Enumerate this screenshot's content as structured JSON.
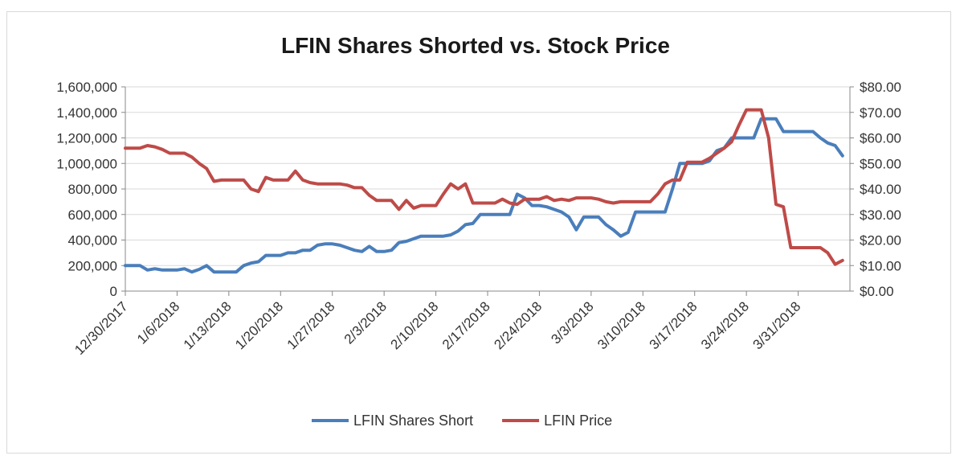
{
  "chart_data": {
    "type": "line",
    "title": "LFIN Shares Shorted vs. Stock Price",
    "x_tick_labels": [
      "12/30/2017",
      "1/6/2018",
      "1/13/2018",
      "1/20/2018",
      "1/27/2018",
      "2/3/2018",
      "2/10/2018",
      "2/17/2018",
      "2/24/2018",
      "3/3/2018",
      "3/10/2018",
      "3/17/2018",
      "3/24/2018",
      "3/31/2018"
    ],
    "x_range_days": [
      0,
      98
    ],
    "y_left": {
      "ylim": [
        0,
        1600000
      ],
      "tick_labels": [
        "0",
        "200,000",
        "400,000",
        "600,000",
        "800,000",
        "1,000,000",
        "1,200,000",
        "1,400,000",
        "1,600,000"
      ],
      "tick_values": [
        0,
        200000,
        400000,
        600000,
        800000,
        1000000,
        1200000,
        1400000,
        1600000
      ]
    },
    "y_right": {
      "ylim": [
        0,
        80
      ],
      "tick_labels": [
        "$0.00",
        "$10.00",
        "$20.00",
        "$30.00",
        "$40.00",
        "$50.00",
        "$60.00",
        "$70.00",
        "$80.00"
      ],
      "tick_values": [
        0,
        10,
        20,
        30,
        40,
        50,
        60,
        70,
        80
      ]
    },
    "series": [
      {
        "name": "LFIN Shares Short",
        "color": "#4a7ebb",
        "axis": "left",
        "points": [
          [
            0,
            200000
          ],
          [
            2,
            200000
          ],
          [
            3,
            165000
          ],
          [
            4,
            175000
          ],
          [
            5,
            165000
          ],
          [
            6,
            165000
          ],
          [
            7,
            165000
          ],
          [
            8,
            175000
          ],
          [
            9,
            150000
          ],
          [
            10,
            170000
          ],
          [
            11,
            200000
          ],
          [
            12,
            150000
          ],
          [
            13,
            150000
          ],
          [
            14,
            150000
          ],
          [
            15,
            150000
          ],
          [
            16,
            200000
          ],
          [
            17,
            220000
          ],
          [
            18,
            230000
          ],
          [
            19,
            280000
          ],
          [
            20,
            280000
          ],
          [
            21,
            280000
          ],
          [
            22,
            300000
          ],
          [
            23,
            300000
          ],
          [
            24,
            320000
          ],
          [
            25,
            320000
          ],
          [
            26,
            360000
          ],
          [
            27,
            370000
          ],
          [
            28,
            370000
          ],
          [
            29,
            360000
          ],
          [
            30,
            340000
          ],
          [
            31,
            320000
          ],
          [
            32,
            310000
          ],
          [
            33,
            350000
          ],
          [
            34,
            310000
          ],
          [
            35,
            310000
          ],
          [
            36,
            320000
          ],
          [
            37,
            380000
          ],
          [
            38,
            390000
          ],
          [
            39,
            410000
          ],
          [
            40,
            430000
          ],
          [
            41,
            430000
          ],
          [
            42,
            430000
          ],
          [
            43,
            430000
          ],
          [
            44,
            440000
          ],
          [
            45,
            470000
          ],
          [
            46,
            520000
          ],
          [
            47,
            530000
          ],
          [
            48,
            600000
          ],
          [
            49,
            600000
          ],
          [
            50,
            600000
          ],
          [
            51,
            600000
          ],
          [
            52,
            600000
          ],
          [
            53,
            760000
          ],
          [
            54,
            730000
          ],
          [
            55,
            670000
          ],
          [
            56,
            670000
          ],
          [
            57,
            660000
          ],
          [
            58,
            640000
          ],
          [
            59,
            620000
          ],
          [
            60,
            580000
          ],
          [
            61,
            480000
          ],
          [
            62,
            580000
          ],
          [
            63,
            580000
          ],
          [
            64,
            580000
          ],
          [
            65,
            520000
          ],
          [
            66,
            480000
          ],
          [
            67,
            430000
          ],
          [
            68,
            460000
          ],
          [
            69,
            620000
          ],
          [
            70,
            620000
          ],
          [
            71,
            620000
          ],
          [
            72,
            620000
          ],
          [
            73,
            620000
          ],
          [
            74,
            800000
          ],
          [
            75,
            1000000
          ],
          [
            76,
            1000000
          ],
          [
            77,
            1000000
          ],
          [
            78,
            1000000
          ],
          [
            79,
            1020000
          ],
          [
            80,
            1100000
          ],
          [
            81,
            1120000
          ],
          [
            82,
            1200000
          ],
          [
            83,
            1200000
          ],
          [
            84,
            1200000
          ],
          [
            85,
            1200000
          ],
          [
            86,
            1350000
          ],
          [
            87,
            1350000
          ],
          [
            88,
            1350000
          ],
          [
            89,
            1250000
          ],
          [
            90,
            1250000
          ],
          [
            91,
            1250000
          ],
          [
            92,
            1250000
          ],
          [
            93,
            1250000
          ],
          [
            94,
            1200000
          ],
          [
            95,
            1160000
          ],
          [
            96,
            1140000
          ],
          [
            97,
            1060000
          ]
        ]
      },
      {
        "name": "LFIN Price",
        "color": "#be4b48",
        "axis": "right",
        "points": [
          [
            0,
            56
          ],
          [
            1,
            56
          ],
          [
            2,
            56
          ],
          [
            3,
            57
          ],
          [
            4,
            56.5
          ],
          [
            5,
            55.5
          ],
          [
            6,
            54
          ],
          [
            7,
            54
          ],
          [
            8,
            54
          ],
          [
            9,
            52.5
          ],
          [
            10,
            50
          ],
          [
            11,
            48
          ],
          [
            12,
            43
          ],
          [
            13,
            43.5
          ],
          [
            14,
            43.5
          ],
          [
            15,
            43.5
          ],
          [
            16,
            43.5
          ],
          [
            17,
            40
          ],
          [
            18,
            39
          ],
          [
            19,
            44.5
          ],
          [
            20,
            43.5
          ],
          [
            21,
            43.5
          ],
          [
            22,
            43.5
          ],
          [
            23,
            47
          ],
          [
            24,
            43.5
          ],
          [
            25,
            42.5
          ],
          [
            26,
            42
          ],
          [
            27,
            42
          ],
          [
            28,
            42
          ],
          [
            29,
            42
          ],
          [
            30,
            41.5
          ],
          [
            31,
            40.5
          ],
          [
            32,
            40.5
          ],
          [
            33,
            37.5
          ],
          [
            34,
            35.5
          ],
          [
            35,
            35.5
          ],
          [
            36,
            35.5
          ],
          [
            37,
            32
          ],
          [
            38,
            35.5
          ],
          [
            39,
            32.5
          ],
          [
            40,
            33.5
          ],
          [
            41,
            33.5
          ],
          [
            42,
            33.5
          ],
          [
            43,
            38
          ],
          [
            44,
            42
          ],
          [
            45,
            40
          ],
          [
            46,
            42
          ],
          [
            47,
            34.5
          ],
          [
            48,
            34.5
          ],
          [
            49,
            34.5
          ],
          [
            50,
            34.5
          ],
          [
            51,
            36
          ],
          [
            52,
            34.5
          ],
          [
            53,
            34
          ],
          [
            54,
            36
          ],
          [
            55,
            36
          ],
          [
            56,
            36
          ],
          [
            57,
            37
          ],
          [
            58,
            35.5
          ],
          [
            59,
            36
          ],
          [
            60,
            35.5
          ],
          [
            61,
            36.5
          ],
          [
            62,
            36.5
          ],
          [
            63,
            36.5
          ],
          [
            64,
            36
          ],
          [
            65,
            35
          ],
          [
            66,
            34.5
          ],
          [
            67,
            35
          ],
          [
            68,
            35
          ],
          [
            69,
            35
          ],
          [
            70,
            35
          ],
          [
            71,
            35
          ],
          [
            72,
            38
          ],
          [
            73,
            42
          ],
          [
            74,
            43.5
          ],
          [
            75,
            43.5
          ],
          [
            76,
            50.5
          ],
          [
            77,
            50.5
          ],
          [
            78,
            50.5
          ],
          [
            79,
            52
          ],
          [
            80,
            54
          ],
          [
            81,
            56
          ],
          [
            82,
            58.5
          ],
          [
            83,
            65
          ],
          [
            84,
            71
          ],
          [
            85,
            71
          ],
          [
            86,
            71
          ],
          [
            87,
            60
          ],
          [
            88,
            34
          ],
          [
            89,
            33
          ],
          [
            90,
            17
          ],
          [
            91,
            17
          ],
          [
            92,
            17
          ],
          [
            93,
            17
          ],
          [
            94,
            17
          ],
          [
            95,
            15
          ],
          [
            96,
            10.5
          ],
          [
            97,
            12
          ]
        ]
      }
    ],
    "legend": "bottom"
  }
}
